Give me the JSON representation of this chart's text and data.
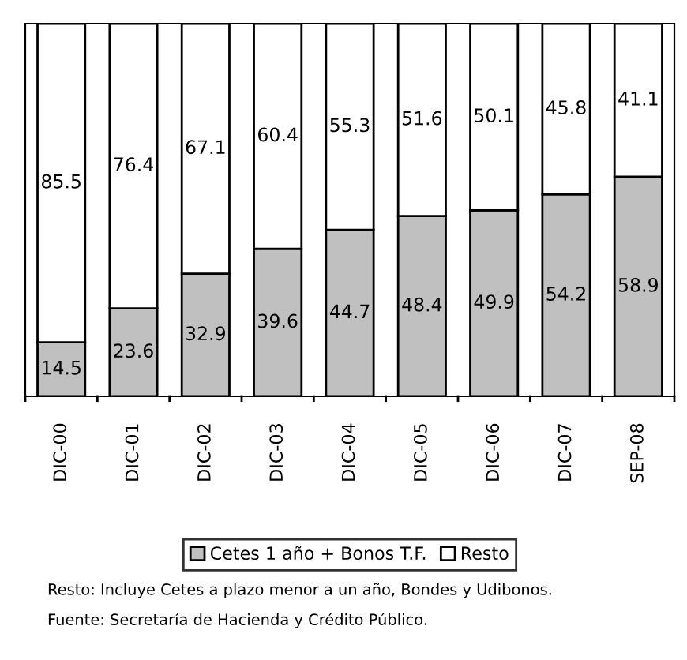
{
  "chart_data": {
    "type": "bar",
    "stacked": true,
    "categories": [
      "DIC-00",
      "DIC-01",
      "DIC-02",
      "DIC-03",
      "DIC-04",
      "DIC-05",
      "DIC-06",
      "DIC-07",
      "SEP-08"
    ],
    "series": [
      {
        "name": "Cetes 1 año + Bonos T.F.",
        "color": "#c0c0c0",
        "values": [
          14.5,
          23.6,
          32.9,
          39.6,
          44.7,
          48.4,
          49.9,
          54.2,
          58.9
        ]
      },
      {
        "name": "Resto",
        "color": "#ffffff",
        "values": [
          85.5,
          76.4,
          67.1,
          60.4,
          55.3,
          51.6,
          50.1,
          45.8,
          41.1
        ]
      }
    ],
    "ylim": [
      0,
      100
    ],
    "tick_labels": "x",
    "data_labels": true,
    "legend": "bottom",
    "grid": false,
    "annotations": [
      "Resto: Incluye Cetes a plazo menor a un año, Bondes y Udibonos.",
      "Fuente: Secretaría de Hacienda y Crédito Público."
    ]
  }
}
